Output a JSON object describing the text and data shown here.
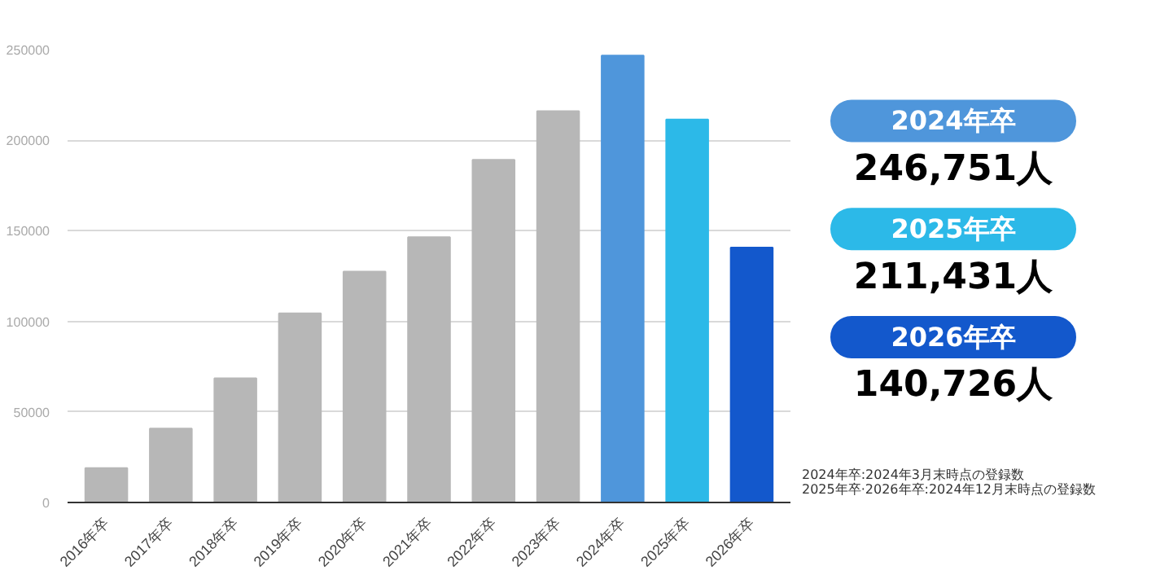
{
  "chart_data": {
    "type": "bar",
    "categories": [
      "2016年卒",
      "2017年卒",
      "2018年卒",
      "2019年卒",
      "2020年卒",
      "2021年卒",
      "2022年卒",
      "2023年卒",
      "2024年卒",
      "2025年卒",
      "2026年卒"
    ],
    "values": [
      19000,
      40800,
      68600,
      104400,
      127500,
      146500,
      189200,
      216100,
      246751,
      211431,
      140726
    ],
    "colors": [
      "#b7b7b7",
      "#b7b7b7",
      "#b7b7b7",
      "#b7b7b7",
      "#b7b7b7",
      "#b7b7b7",
      "#b7b7b7",
      "#b7b7b7",
      "#4f96db",
      "#2cb9e8",
      "#1358cc"
    ],
    "ylim": [
      0,
      250000
    ],
    "yticks": [
      0,
      50000,
      100000,
      150000,
      200000,
      250000
    ],
    "grid": "y",
    "annotations": [
      "2024年卒",
      "246,751人",
      "2025年卒",
      "211,431人",
      "2026年卒",
      "140,726人",
      "2024年卒:2024年3月末時点の登録数",
      "2025年卒·2026年卒:2024年12月末時点の登録数"
    ]
  }
}
